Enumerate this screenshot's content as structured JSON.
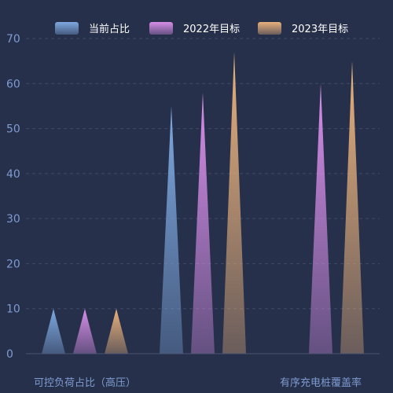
{
  "chart_data": {
    "type": "bar",
    "bar_shape": "pictorial-triangle",
    "categories": [
      "可控负荷占比（高压）",
      "",
      "有序充电桩覆盖率"
    ],
    "series": [
      {
        "name": "当前占比",
        "values": [
          10,
          55,
          null
        ],
        "color": "#7ea9e0"
      },
      {
        "name": "2022年目标",
        "values": [
          10,
          58,
          60
        ],
        "color": "#d78ee8"
      },
      {
        "name": "2023年目标",
        "values": [
          10,
          67,
          65
        ],
        "color": "#e8b17c"
      }
    ],
    "yticks": [
      0,
      10,
      20,
      30,
      40,
      50,
      60,
      70
    ],
    "ylim": [
      0,
      70
    ],
    "grid": true,
    "legend_position": "top",
    "background": "#27304a"
  }
}
